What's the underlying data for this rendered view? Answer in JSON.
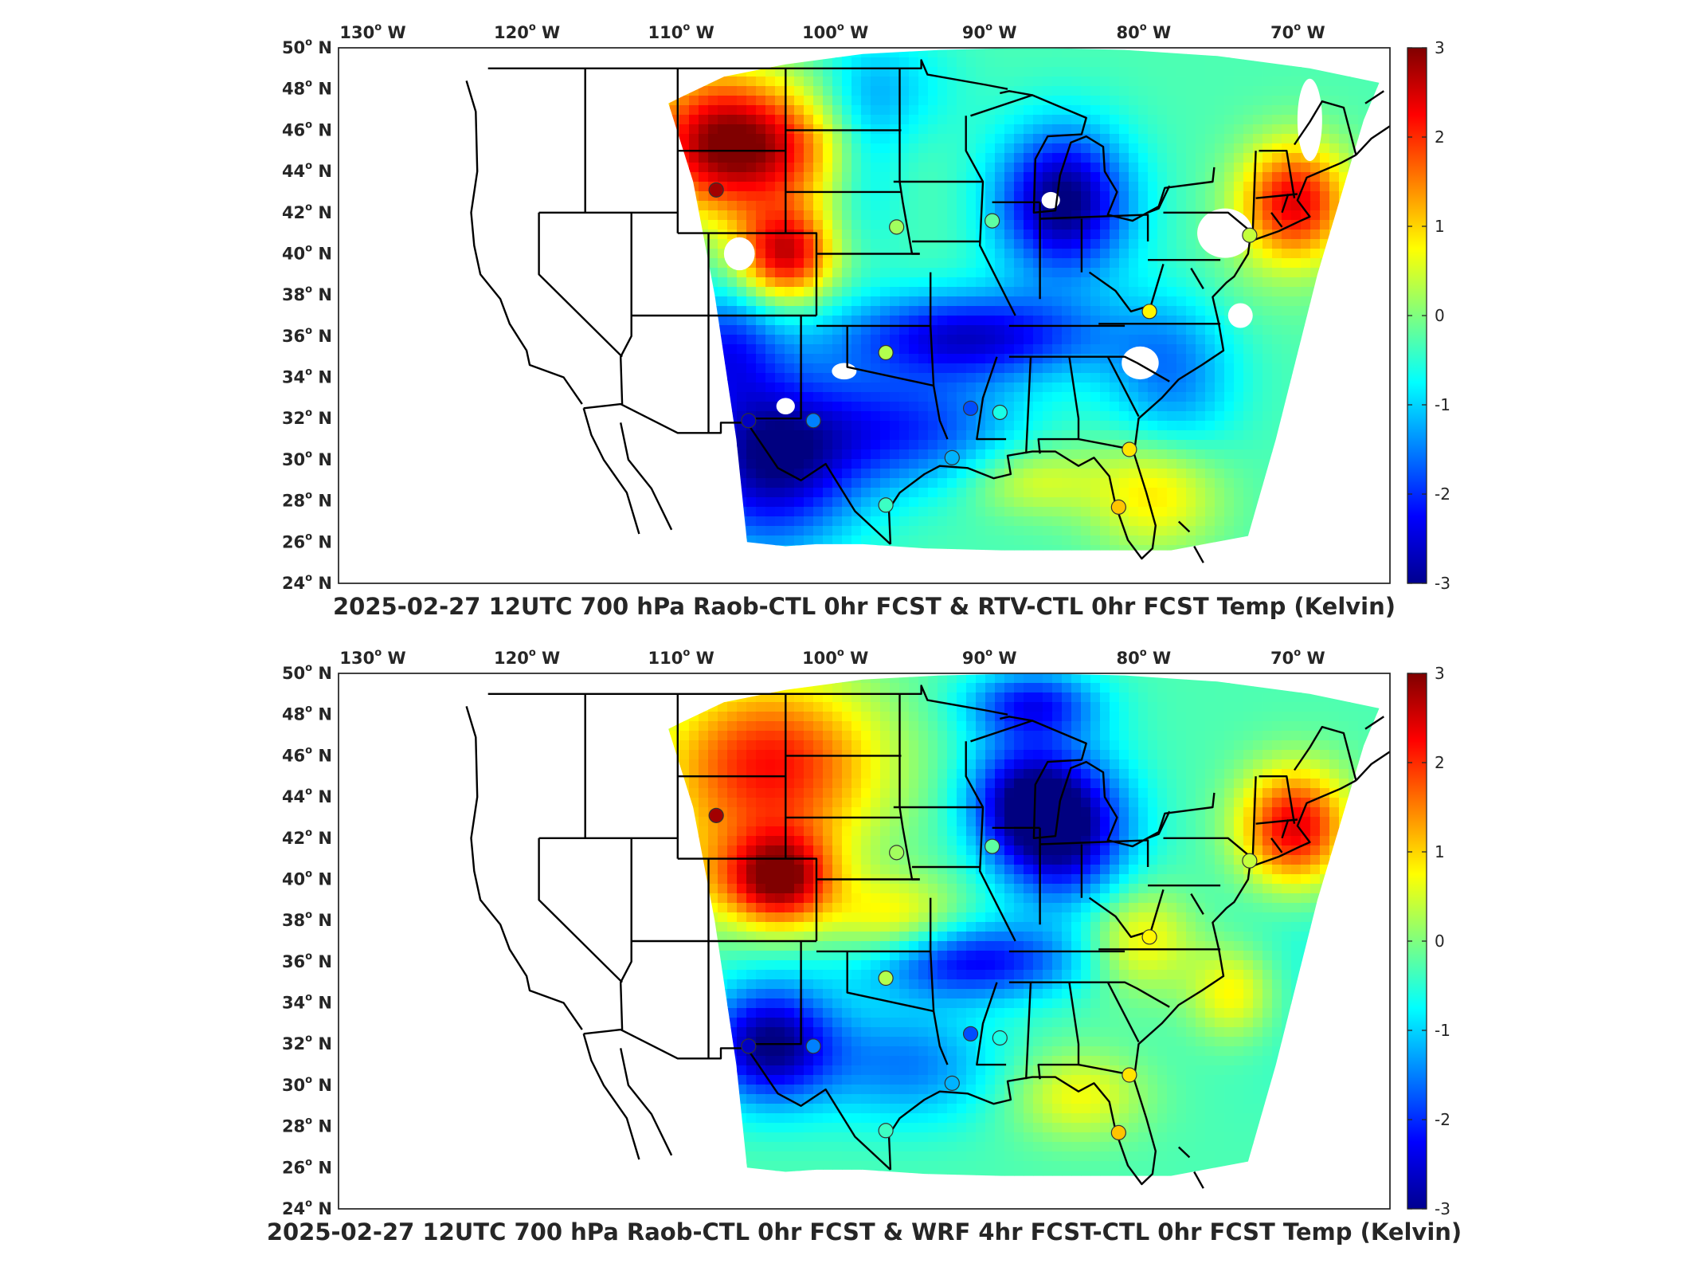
{
  "panels": [
    {
      "title": "2025-02-27 12UTC 700 hPa Raob-CTL 0hr FCST & RTV-CTL 0hr FCST Temp (Kelvin)",
      "field": "rtv"
    },
    {
      "title": "2025-02-27 12UTC 700 hPa Raob-CTL 0hr FCST & WRF 4hr FCST-CTL 0hr FCST Temp (Kelvin)",
      "field": "wrf"
    }
  ],
  "lon_labels": [
    "130",
    "120",
    "110",
    "100",
    "90",
    "80",
    "70"
  ],
  "lon_hemi": "W",
  "lat_labels": [
    "50",
    "48",
    "46",
    "44",
    "42",
    "40",
    "38",
    "36",
    "34",
    "32",
    "30",
    "28",
    "26",
    "24"
  ],
  "lat_hemi": "N",
  "degree_mark": "o",
  "colorbar": {
    "ticks": [
      "3",
      "2",
      "1",
      "0",
      "-1",
      "-2",
      "-3"
    ],
    "colormap": "jet",
    "range": [
      -3,
      3
    ]
  },
  "raob_stations": [
    {
      "lon": -108.5,
      "lat": 43.1,
      "value": 2.8
    },
    {
      "lon": -96.8,
      "lat": 41.3,
      "value": 0.2
    },
    {
      "lon": -90.6,
      "lat": 41.6,
      "value": -0.2
    },
    {
      "lon": -97.5,
      "lat": 35.2,
      "value": 0.3
    },
    {
      "lon": -90.1,
      "lat": 32.3,
      "value": -0.6
    },
    {
      "lon": -92.0,
      "lat": 32.5,
      "value": -1.8
    },
    {
      "lon": -93.2,
      "lat": 30.1,
      "value": -1.2
    },
    {
      "lon": -97.5,
      "lat": 27.8,
      "value": -0.4
    },
    {
      "lon": -81.7,
      "lat": 30.5,
      "value": 0.9
    },
    {
      "lon": -82.4,
      "lat": 27.7,
      "value": 1.1
    },
    {
      "lon": -80.4,
      "lat": 37.2,
      "value": 0.8
    },
    {
      "lon": -106.4,
      "lat": 31.9,
      "value": -2.6
    },
    {
      "lon": -102.2,
      "lat": 31.9,
      "value": -1.5
    },
    {
      "lon": -73.9,
      "lat": 40.9,
      "value": 0.4
    }
  ]
}
